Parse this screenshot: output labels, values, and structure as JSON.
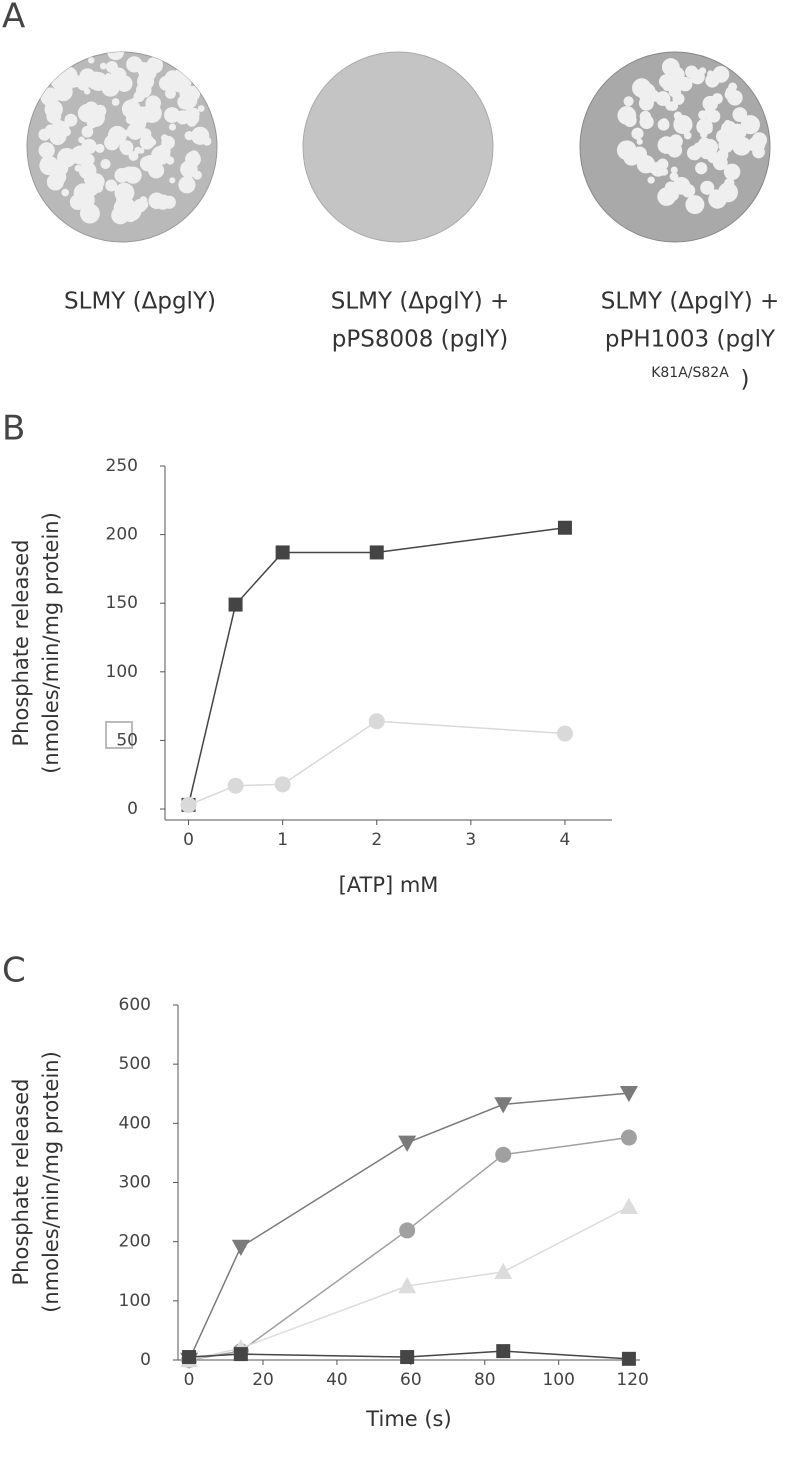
{
  "panel_labels": [
    "A",
    "B",
    "C"
  ],
  "plates": [
    {
      "caption": [
        "SLMY (ΔpglY)"
      ]
    },
    {
      "caption": [
        "SLMY (ΔpglY) +",
        "pPS8008 (pglY)"
      ]
    },
    {
      "caption": [
        "SLMY (ΔpglY) +",
        "pPH1003 (pglY",
        "K81A/S82A",
        ")"
      ]
    }
  ],
  "chart_data": [
    {
      "type": "line",
      "xlabel": "[ATP] mM",
      "ylabel": [
        "Phosphate released",
        "(nmoles/min/mg protein)"
      ],
      "x": [
        0,
        0.5,
        1,
        2,
        4
      ],
      "xlim": [
        -0.25,
        4.5
      ],
      "xticks": [
        0,
        1,
        2,
        3,
        4
      ],
      "ylim": [
        -8,
        250
      ],
      "yticks": [
        0,
        50,
        100,
        150,
        200,
        250
      ],
      "series": [
        {
          "color": "#444444",
          "marker": "square",
          "values": [
            3,
            149,
            187,
            187,
            205
          ]
        },
        {
          "color": "#d9d9d9",
          "marker": "circle",
          "values": [
            3,
            17,
            18,
            64,
            55
          ]
        }
      ]
    },
    {
      "type": "line",
      "xlabel": "Time (s)",
      "ylabel": [
        "Phosphate released",
        "(nmoles/min/mg protein)"
      ],
      "x": [
        0,
        14,
        59,
        85,
        119
      ],
      "xlim": [
        -3,
        122
      ],
      "xticks": [
        0,
        20,
        40,
        60,
        80,
        100,
        120
      ],
      "ylim": [
        0,
        600
      ],
      "yticks": [
        0,
        100,
        200,
        300,
        400,
        500,
        600
      ],
      "series": [
        {
          "color": "#7a7a7a",
          "marker": "triangle-down",
          "values": [
            0,
            191,
            367,
            432,
            451
          ]
        },
        {
          "color": "#a0a0a0",
          "marker": "circle",
          "values": [
            0,
            15,
            219,
            347,
            376
          ]
        },
        {
          "color": "#dcdcdc",
          "marker": "triangle-up",
          "values": [
            0,
            20,
            125,
            149,
            259
          ]
        },
        {
          "color": "#454545",
          "marker": "square",
          "values": [
            5,
            10,
            5,
            15,
            2
          ]
        }
      ]
    }
  ]
}
